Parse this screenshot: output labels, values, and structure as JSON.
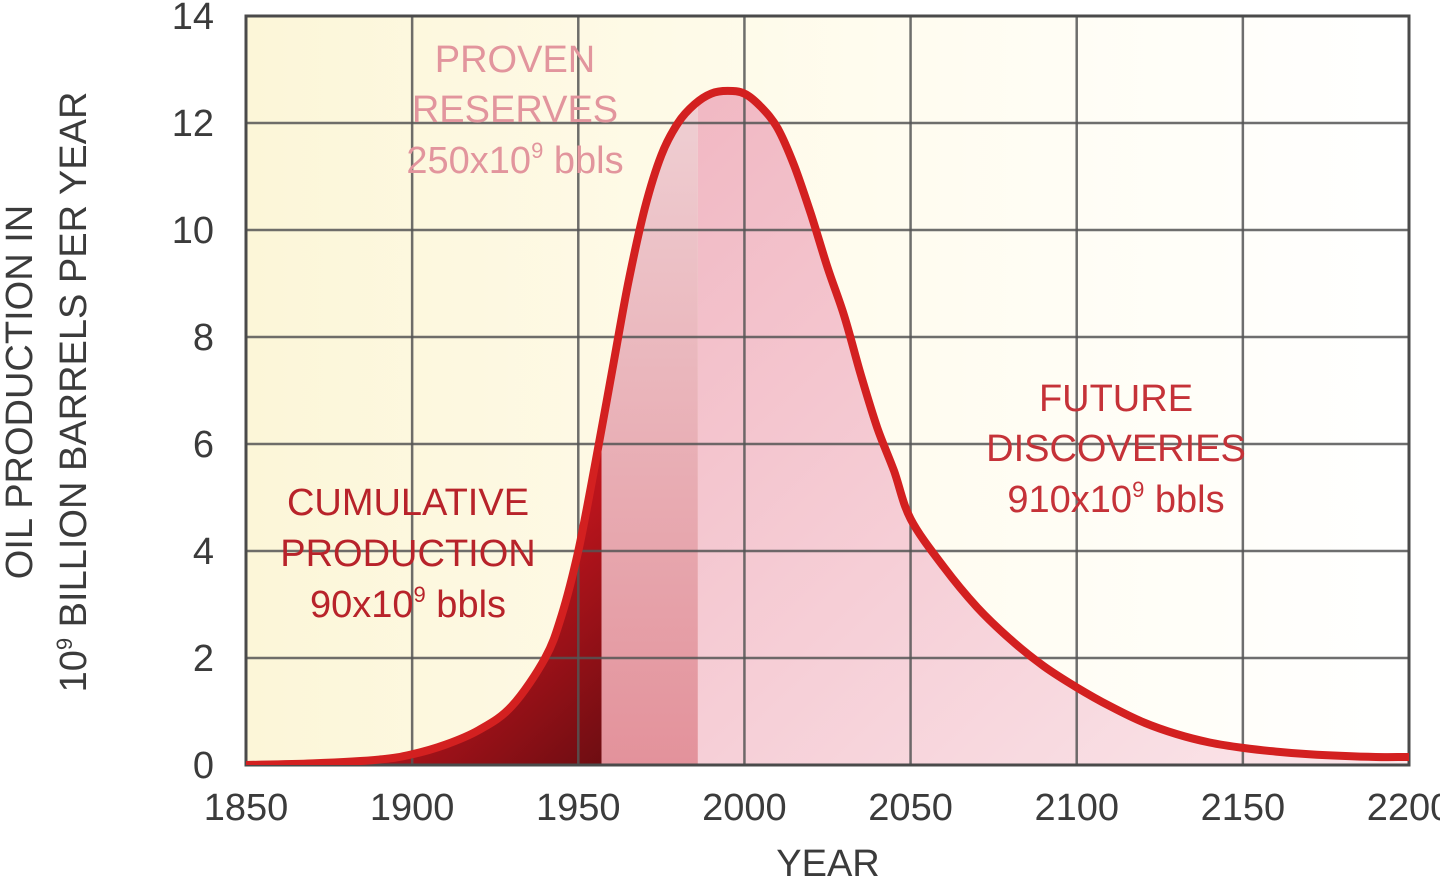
{
  "chart_data": {
    "type": "area",
    "xlabel": "YEAR",
    "ylabel": [
      "OIL PRODUCTION IN",
      "10",
      "9",
      " BILLION BARRELS PER YEAR"
    ],
    "xlim": [
      1850,
      2200
    ],
    "ylim": [
      0,
      14
    ],
    "x_ticks": [
      1850,
      1900,
      1950,
      2000,
      2050,
      2100,
      2150,
      2200
    ],
    "y_ticks": [
      0,
      2,
      4,
      6,
      8,
      10,
      12,
      14
    ],
    "grid": true,
    "series": [
      {
        "x": [
          1850,
          1870,
          1890,
          1900,
          1910,
          1920,
          1930,
          1940,
          1945,
          1950,
          1955,
          1960,
          1965,
          1970,
          1975,
          1980,
          1985,
          1990,
          1995,
          2000,
          2005,
          2010,
          2015,
          2020,
          2025,
          2030,
          2035,
          2040,
          2045,
          2050,
          2060,
          2070,
          2080,
          2090,
          2100,
          2110,
          2120,
          2130,
          2140,
          2150,
          2160,
          2170,
          2180,
          2190,
          2200
        ],
        "y": [
          0.0,
          0.03,
          0.1,
          0.2,
          0.38,
          0.65,
          1.1,
          2.0,
          2.8,
          4.0,
          5.6,
          7.3,
          9.0,
          10.4,
          11.4,
          12.0,
          12.35,
          12.55,
          12.6,
          12.55,
          12.3,
          11.9,
          11.2,
          10.3,
          9.3,
          8.4,
          7.3,
          6.3,
          5.5,
          4.6,
          3.7,
          2.95,
          2.35,
          1.85,
          1.45,
          1.1,
          0.8,
          0.58,
          0.42,
          0.32,
          0.25,
          0.2,
          0.17,
          0.15,
          0.15
        ]
      }
    ],
    "regions": [
      {
        "name": "cumulative-production",
        "x_from": 1850,
        "x_to": 1957,
        "color": "#b5121b"
      },
      {
        "name": "proven-reserves",
        "x_from": 1957,
        "x_to": 1986,
        "color": "#e9a6ae"
      },
      {
        "name": "future-discoveries",
        "x_from": 1986,
        "x_to": 2200,
        "color": "#f3c2cb"
      }
    ],
    "curve_color": "#d32020",
    "annotations": {
      "proven": {
        "lines": [
          "PROVEN",
          "RESERVES"
        ],
        "value": "250x10",
        "exp": "9",
        "unit": " bbls",
        "color": "#e2959d"
      },
      "cumulative": {
        "lines": [
          "CUMULATIVE",
          "PRODUCTION"
        ],
        "value": "90x10",
        "exp": "9",
        "unit": " bbls",
        "color": "#b8232a"
      },
      "future": {
        "lines": [
          "FUTURE",
          "DISCOVERIES"
        ],
        "value": "910x10",
        "exp": "9",
        "unit": " bbls",
        "color": "#c53238"
      }
    }
  }
}
